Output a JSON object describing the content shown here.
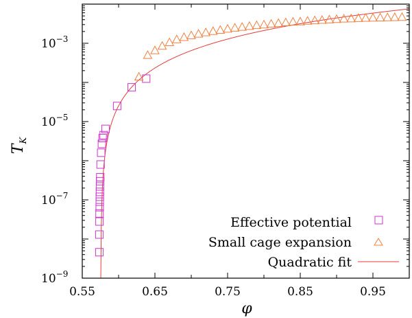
{
  "chart_data": {
    "type": "scatter",
    "xlabel": "φ",
    "ylabel": {
      "main": "T",
      "sub": "K"
    },
    "xlim": [
      0.55,
      1.0
    ],
    "ylim_log10": [
      -9,
      -2
    ],
    "x_ticks": [
      {
        "value": 0.55,
        "label": "0.55"
      },
      {
        "value": 0.65,
        "label": "0.65"
      },
      {
        "value": 0.75,
        "label": "0.75"
      },
      {
        "value": 0.85,
        "label": "0.85"
      },
      {
        "value": 0.95,
        "label": "0.95"
      }
    ],
    "y_ticks": [
      {
        "exp": -9,
        "label": "10",
        "sup": "−9"
      },
      {
        "exp": -7,
        "label": "10",
        "sup": "−7"
      },
      {
        "exp": -5,
        "label": "10",
        "sup": "−5"
      },
      {
        "exp": -3,
        "label": "10",
        "sup": "−3"
      }
    ],
    "legend_position": "bottom-right",
    "series": [
      {
        "name": "Effective potential",
        "marker": "square",
        "color": "#cc33cc",
        "points": [
          [
            0.5735,
            4.6e-09
          ],
          [
            0.5735,
            1.3e-08
          ],
          [
            0.5737,
            2.8e-08
          ],
          [
            0.5738,
            4.5e-08
          ],
          [
            0.574,
            6.5e-08
          ],
          [
            0.5741,
            9e-08
          ],
          [
            0.5742,
            1.2e-07
          ],
          [
            0.5743,
            1.6e-07
          ],
          [
            0.5744,
            2.2e-07
          ],
          [
            0.5746,
            3e-07
          ],
          [
            0.5748,
            3.8e-07
          ],
          [
            0.5752,
            8e-07
          ],
          [
            0.576,
            1.6e-06
          ],
          [
            0.577,
            2.7e-06
          ],
          [
            0.578,
            3.8e-06
          ],
          [
            0.5795,
            4.5e-06
          ],
          [
            0.582,
            6.5e-06
          ],
          [
            0.598,
            2.5e-05
          ],
          [
            0.618,
            7.5e-05
          ],
          [
            0.638,
            0.000125
          ]
        ]
      },
      {
        "name": "Small cage expansion",
        "marker": "triangle",
        "color": "#f08040",
        "points": [
          [
            0.628,
            0.00014
          ],
          [
            0.64,
            0.0005
          ],
          [
            0.65,
            0.00066
          ],
          [
            0.66,
            0.00086
          ],
          [
            0.67,
            0.00106
          ],
          [
            0.68,
            0.00126
          ],
          [
            0.69,
            0.00144
          ],
          [
            0.7,
            0.0016
          ],
          [
            0.71,
            0.00175
          ],
          [
            0.72,
            0.0019
          ],
          [
            0.73,
            0.00205
          ],
          [
            0.74,
            0.0022
          ],
          [
            0.75,
            0.00235
          ],
          [
            0.76,
            0.0025
          ],
          [
            0.77,
            0.00262
          ],
          [
            0.78,
            0.00276
          ],
          [
            0.79,
            0.0029
          ],
          [
            0.8,
            0.003
          ],
          [
            0.81,
            0.00315
          ],
          [
            0.82,
            0.00328
          ],
          [
            0.83,
            0.00342
          ],
          [
            0.84,
            0.00356
          ],
          [
            0.85,
            0.0036
          ],
          [
            0.86,
            0.00375
          ],
          [
            0.87,
            0.00385
          ],
          [
            0.88,
            0.00395
          ],
          [
            0.89,
            0.00405
          ],
          [
            0.9,
            0.00415
          ],
          [
            0.91,
            0.00425
          ],
          [
            0.92,
            0.0043
          ],
          [
            0.93,
            0.0044
          ],
          [
            0.94,
            0.00445
          ],
          [
            0.95,
            0.0045
          ],
          [
            0.96,
            0.00455
          ],
          [
            0.97,
            0.0046
          ],
          [
            0.98,
            0.00465
          ],
          [
            0.99,
            0.0047
          ]
        ]
      },
      {
        "name": "Quadratic fit",
        "line": true,
        "color": "#e83a3a",
        "phi_c": 0.5755,
        "coefficient": 0.042
      }
    ]
  }
}
